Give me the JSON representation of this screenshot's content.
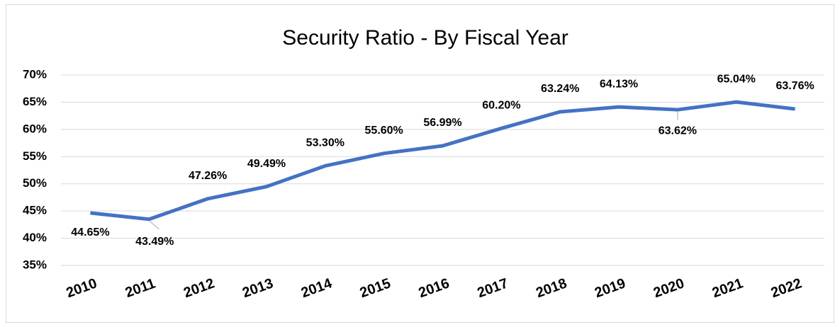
{
  "chart_data": {
    "type": "line",
    "title": "Security Ratio - By Fiscal Year",
    "categories": [
      "2010",
      "2011",
      "2012",
      "2013",
      "2014",
      "2015",
      "2016",
      "2017",
      "2018",
      "2019",
      "2020",
      "2021",
      "2022"
    ],
    "series": [
      {
        "color": "#4472c4",
        "values": [
          44.65,
          43.49,
          47.26,
          49.49,
          53.3,
          55.6,
          56.99,
          60.2,
          63.24,
          64.13,
          63.62,
          65.04,
          63.76
        ],
        "value_labels": [
          "44.65%",
          "43.49%",
          "47.26%",
          "49.49%",
          "53.30%",
          "55.60%",
          "56.99%",
          "60.20%",
          "63.24%",
          "64.13%",
          "63.62%",
          "65.04%",
          "63.76%"
        ]
      }
    ],
    "ylim": [
      35,
      70
    ],
    "yticks": [
      {
        "value": 35,
        "label": "35%"
      },
      {
        "value": 40,
        "label": "40%"
      },
      {
        "value": 45,
        "label": "45%"
      },
      {
        "value": 50,
        "label": "50%"
      },
      {
        "value": 55,
        "label": "55%"
      },
      {
        "value": 60,
        "label": "60%"
      },
      {
        "value": 65,
        "label": "65%"
      },
      {
        "value": 70,
        "label": "70%"
      }
    ],
    "grid": true
  }
}
